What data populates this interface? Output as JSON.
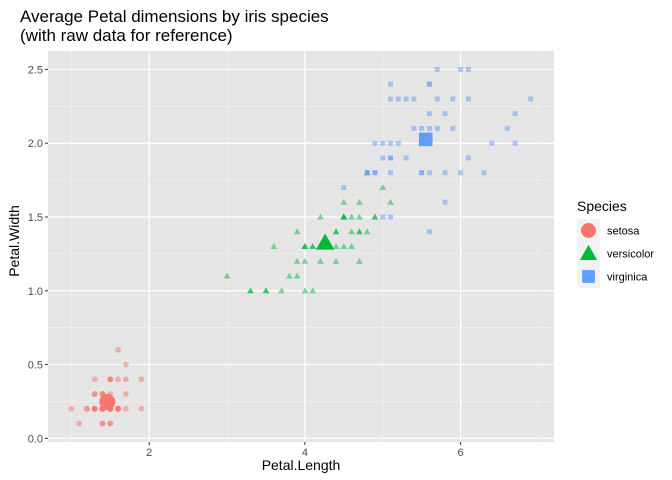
{
  "chart_data": {
    "type": "scatter",
    "title_line1": "Average Petal dimensions by iris species",
    "title_line2": "(with raw data for reference)",
    "xlabel": "Petal.Length",
    "ylabel": "Petal.Width",
    "xlim": [
      0.7,
      7.2
    ],
    "ylim": [
      -0.025,
      2.625
    ],
    "x_ticks": [
      2,
      4,
      6
    ],
    "y_ticks": [
      0.0,
      0.5,
      1.0,
      1.5,
      2.0,
      2.5
    ],
    "x_tick_labels": [
      "2",
      "4",
      "6"
    ],
    "y_tick_labels": [
      "0.0",
      "0.5",
      "1.0",
      "1.5",
      "2.0",
      "2.5"
    ],
    "background": "#e5e5e5",
    "grid": true,
    "legend_title": "Species",
    "legend_position": "right",
    "series": [
      {
        "name": "setosa",
        "shape": "circle",
        "color": "#f8766d",
        "mean": [
          1.462,
          0.246
        ],
        "points": [
          [
            1.4,
            0.2
          ],
          [
            1.4,
            0.2
          ],
          [
            1.3,
            0.2
          ],
          [
            1.5,
            0.2
          ],
          [
            1.4,
            0.2
          ],
          [
            1.7,
            0.4
          ],
          [
            1.4,
            0.3
          ],
          [
            1.5,
            0.2
          ],
          [
            1.4,
            0.2
          ],
          [
            1.5,
            0.1
          ],
          [
            1.5,
            0.2
          ],
          [
            1.6,
            0.2
          ],
          [
            1.4,
            0.1
          ],
          [
            1.1,
            0.1
          ],
          [
            1.2,
            0.2
          ],
          [
            1.5,
            0.4
          ],
          [
            1.3,
            0.4
          ],
          [
            1.4,
            0.3
          ],
          [
            1.7,
            0.3
          ],
          [
            1.5,
            0.3
          ],
          [
            1.7,
            0.2
          ],
          [
            1.5,
            0.4
          ],
          [
            1.0,
            0.2
          ],
          [
            1.7,
            0.5
          ],
          [
            1.9,
            0.2
          ],
          [
            1.6,
            0.2
          ],
          [
            1.6,
            0.4
          ],
          [
            1.5,
            0.2
          ],
          [
            1.4,
            0.2
          ],
          [
            1.6,
            0.2
          ],
          [
            1.6,
            0.2
          ],
          [
            1.5,
            0.4
          ],
          [
            1.5,
            0.1
          ],
          [
            1.4,
            0.2
          ],
          [
            1.5,
            0.2
          ],
          [
            1.2,
            0.2
          ],
          [
            1.3,
            0.2
          ],
          [
            1.4,
            0.1
          ],
          [
            1.3,
            0.2
          ],
          [
            1.5,
            0.2
          ],
          [
            1.3,
            0.3
          ],
          [
            1.3,
            0.3
          ],
          [
            1.3,
            0.2
          ],
          [
            1.6,
            0.6
          ],
          [
            1.9,
            0.4
          ],
          [
            1.4,
            0.3
          ],
          [
            1.6,
            0.2
          ],
          [
            1.4,
            0.2
          ],
          [
            1.5,
            0.2
          ],
          [
            1.4,
            0.2
          ]
        ]
      },
      {
        "name": "versicolor",
        "shape": "triangle",
        "color": "#00ba38",
        "mean": [
          4.26,
          1.326
        ],
        "points": [
          [
            4.7,
            1.4
          ],
          [
            4.5,
            1.5
          ],
          [
            4.9,
            1.5
          ],
          [
            4.0,
            1.3
          ],
          [
            4.6,
            1.5
          ],
          [
            4.5,
            1.3
          ],
          [
            4.7,
            1.6
          ],
          [
            3.3,
            1.0
          ],
          [
            4.6,
            1.3
          ],
          [
            3.9,
            1.4
          ],
          [
            3.5,
            1.0
          ],
          [
            4.2,
            1.5
          ],
          [
            4.0,
            1.0
          ],
          [
            4.7,
            1.4
          ],
          [
            3.6,
            1.3
          ],
          [
            4.4,
            1.4
          ],
          [
            4.5,
            1.5
          ],
          [
            4.1,
            1.0
          ],
          [
            4.5,
            1.5
          ],
          [
            3.9,
            1.1
          ],
          [
            4.8,
            1.8
          ],
          [
            4.0,
            1.3
          ],
          [
            4.9,
            1.5
          ],
          [
            4.7,
            1.2
          ],
          [
            4.3,
            1.3
          ],
          [
            4.4,
            1.4
          ],
          [
            4.8,
            1.4
          ],
          [
            5.0,
            1.7
          ],
          [
            4.5,
            1.5
          ],
          [
            3.5,
            1.0
          ],
          [
            3.8,
            1.1
          ],
          [
            3.7,
            1.0
          ],
          [
            3.9,
            1.2
          ],
          [
            5.1,
            1.6
          ],
          [
            4.5,
            1.5
          ],
          [
            4.5,
            1.6
          ],
          [
            4.7,
            1.5
          ],
          [
            4.4,
            1.3
          ],
          [
            4.1,
            1.3
          ],
          [
            4.0,
            1.3
          ],
          [
            4.4,
            1.2
          ],
          [
            4.6,
            1.4
          ],
          [
            4.0,
            1.2
          ],
          [
            3.3,
            1.0
          ],
          [
            4.2,
            1.3
          ],
          [
            4.2,
            1.2
          ],
          [
            4.2,
            1.3
          ],
          [
            4.3,
            1.3
          ],
          [
            3.0,
            1.1
          ],
          [
            4.1,
            1.3
          ]
        ]
      },
      {
        "name": "virginica",
        "shape": "square",
        "color": "#619cff",
        "mean": [
          5.552,
          2.026
        ],
        "points": [
          [
            6.0,
            2.5
          ],
          [
            5.1,
            1.9
          ],
          [
            5.9,
            2.1
          ],
          [
            5.6,
            1.8
          ],
          [
            5.8,
            2.2
          ],
          [
            6.6,
            2.1
          ],
          [
            4.5,
            1.7
          ],
          [
            6.3,
            1.8
          ],
          [
            5.8,
            1.8
          ],
          [
            6.1,
            2.5
          ],
          [
            5.1,
            2.0
          ],
          [
            5.3,
            1.9
          ],
          [
            5.5,
            2.1
          ],
          [
            5.0,
            2.0
          ],
          [
            5.1,
            2.4
          ],
          [
            5.3,
            2.3
          ],
          [
            5.5,
            1.8
          ],
          [
            6.7,
            2.2
          ],
          [
            6.9,
            2.3
          ],
          [
            5.0,
            1.5
          ],
          [
            5.7,
            2.3
          ],
          [
            4.9,
            2.0
          ],
          [
            6.7,
            2.0
          ],
          [
            4.9,
            1.8
          ],
          [
            5.7,
            2.1
          ],
          [
            6.0,
            1.8
          ],
          [
            4.8,
            1.8
          ],
          [
            4.9,
            1.8
          ],
          [
            5.6,
            2.1
          ],
          [
            5.8,
            1.6
          ],
          [
            6.1,
            1.9
          ],
          [
            6.4,
            2.0
          ],
          [
            5.6,
            2.2
          ],
          [
            5.1,
            1.5
          ],
          [
            5.6,
            1.4
          ],
          [
            6.1,
            2.3
          ],
          [
            5.6,
            2.4
          ],
          [
            5.5,
            1.8
          ],
          [
            4.8,
            1.8
          ],
          [
            5.4,
            2.1
          ],
          [
            5.6,
            2.4
          ],
          [
            5.1,
            2.3
          ],
          [
            5.1,
            1.9
          ],
          [
            5.9,
            2.3
          ],
          [
            5.7,
            2.5
          ],
          [
            5.2,
            2.3
          ],
          [
            5.0,
            1.9
          ],
          [
            5.2,
            2.0
          ],
          [
            5.4,
            2.3
          ],
          [
            5.1,
            1.8
          ]
        ]
      }
    ]
  }
}
